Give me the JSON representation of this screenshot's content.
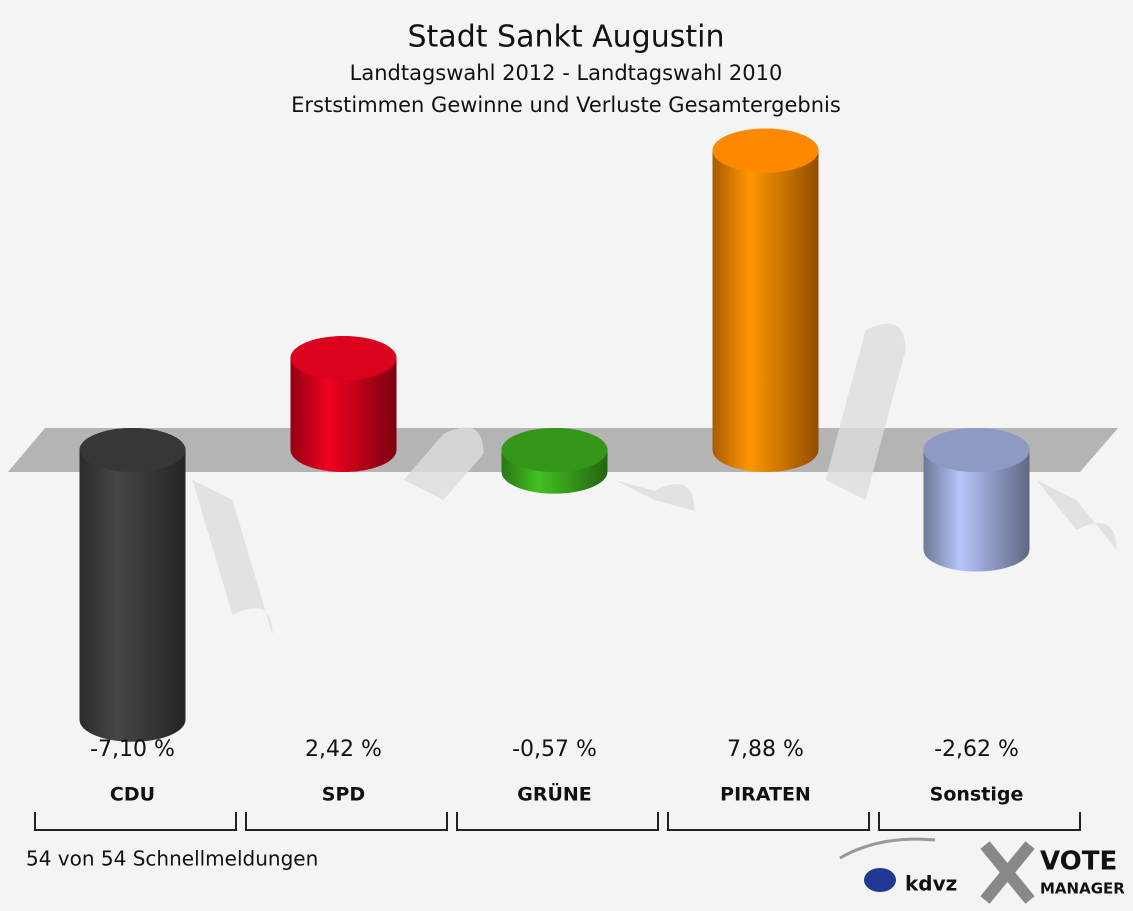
{
  "chart_data": {
    "type": "bar",
    "title": "Stadt Sankt Augustin",
    "subtitle": [
      "Landtagswahl 2012 - Landtagswahl 2010",
      "Erststimmen Gewinne und Verluste Gesamtergebnis"
    ],
    "categories": [
      "CDU",
      "SPD",
      "GRÜNE",
      "PIRATEN",
      "Sonstige"
    ],
    "values": [
      -7.1,
      2.42,
      -0.57,
      7.88,
      -2.62
    ],
    "value_labels": [
      "-7,10 %",
      "2,42 %",
      "-0,57 %",
      "7,88 %",
      "-2,62 %"
    ],
    "colors": [
      "#3d3d3d",
      "#d0021b",
      "#3aa81c",
      "#f28200",
      "#9eabd9"
    ],
    "footer": "54 von 54 Schnellmeldungen",
    "logos": [
      "kdvz",
      "VOTE",
      "MANAGER"
    ]
  }
}
